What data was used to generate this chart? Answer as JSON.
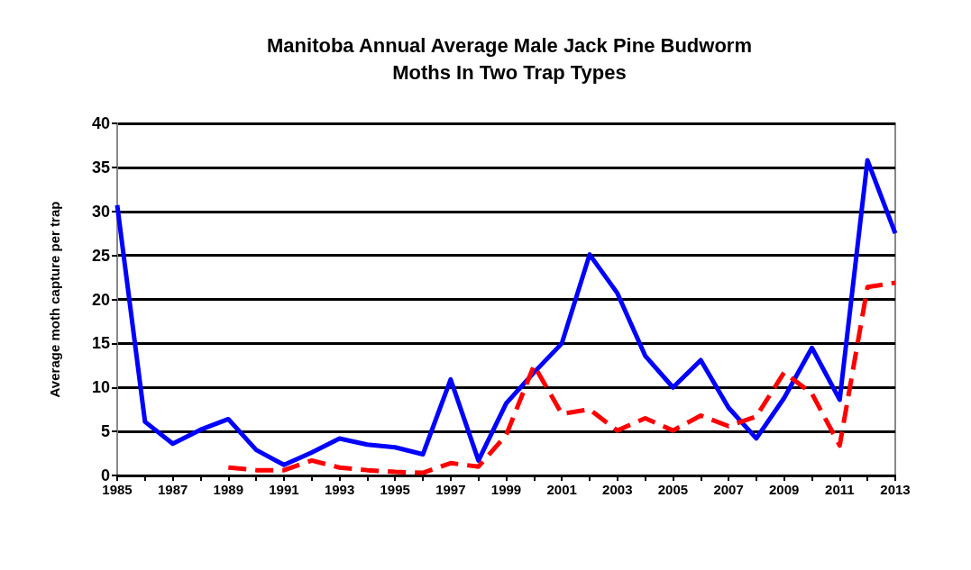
{
  "chart_data": {
    "type": "line",
    "title": "Manitoba Annual Average Male Jack Pine Budworm\nMoths In Two Trap Types",
    "ylabel": "Average moth capture per trap",
    "x": [
      1985,
      1986,
      1987,
      1988,
      1989,
      1990,
      1991,
      1992,
      1993,
      1994,
      1995,
      1996,
      1997,
      1998,
      1999,
      2000,
      2001,
      2002,
      2003,
      2004,
      2005,
      2006,
      2007,
      2008,
      2009,
      2010,
      2011,
      2012,
      2013
    ],
    "series": [
      {
        "color": "#0000ff",
        "line_style": "solid",
        "values": [
          30.7,
          6.1,
          3.6,
          5.2,
          6.4,
          2.9,
          1.2,
          2.6,
          4.2,
          3.5,
          3.2,
          2.4,
          10.9,
          1.7,
          8.2,
          11.7,
          15,
          25.1,
          20.7,
          13.6,
          10,
          13.1,
          7.7,
          4.2,
          8.8,
          14.5,
          8.6,
          35.8,
          27.5
        ]
      },
      {
        "color": "#ff0000",
        "line_style": "dashed",
        "values": [
          null,
          null,
          null,
          null,
          0.9,
          0.6,
          0.6,
          1.7,
          0.9,
          0.6,
          0.4,
          0.3,
          1.4,
          1,
          4.6,
          12.5,
          7,
          7.5,
          5.1,
          6.5,
          5.1,
          6.8,
          5.6,
          6.7,
          11.7,
          9.3,
          3.4,
          21.4,
          21.9
        ]
      }
    ],
    "xlim": [
      1985,
      2013
    ],
    "xticks": [
      1985,
      {
        "value": 1986,
        "label": null
      },
      1987,
      {
        "value": 1988,
        "label": null
      },
      1989,
      {
        "value": 1990,
        "label": null
      },
      1991,
      {
        "value": 1992,
        "label": null
      },
      1993,
      {
        "value": 1994,
        "label": null
      },
      1995,
      {
        "value": 1996,
        "label": null
      },
      1997,
      {
        "value": 1998,
        "label": null
      },
      1999,
      {
        "value": 2000,
        "label": null
      },
      2001,
      {
        "value": 2002,
        "label": null
      },
      2003,
      {
        "value": 2004,
        "label": null
      },
      2005,
      {
        "value": 2006,
        "label": null
      },
      2007,
      {
        "value": 2008,
        "label": null
      },
      2009,
      {
        "value": 2010,
        "label": null
      },
      2011,
      {
        "value": 2012,
        "label": null
      },
      2013
    ],
    "ylim": [
      0,
      40
    ],
    "yticks": [
      0,
      5,
      10,
      15,
      20,
      25,
      30,
      35,
      40
    ],
    "grid": "y",
    "marker": "none"
  }
}
